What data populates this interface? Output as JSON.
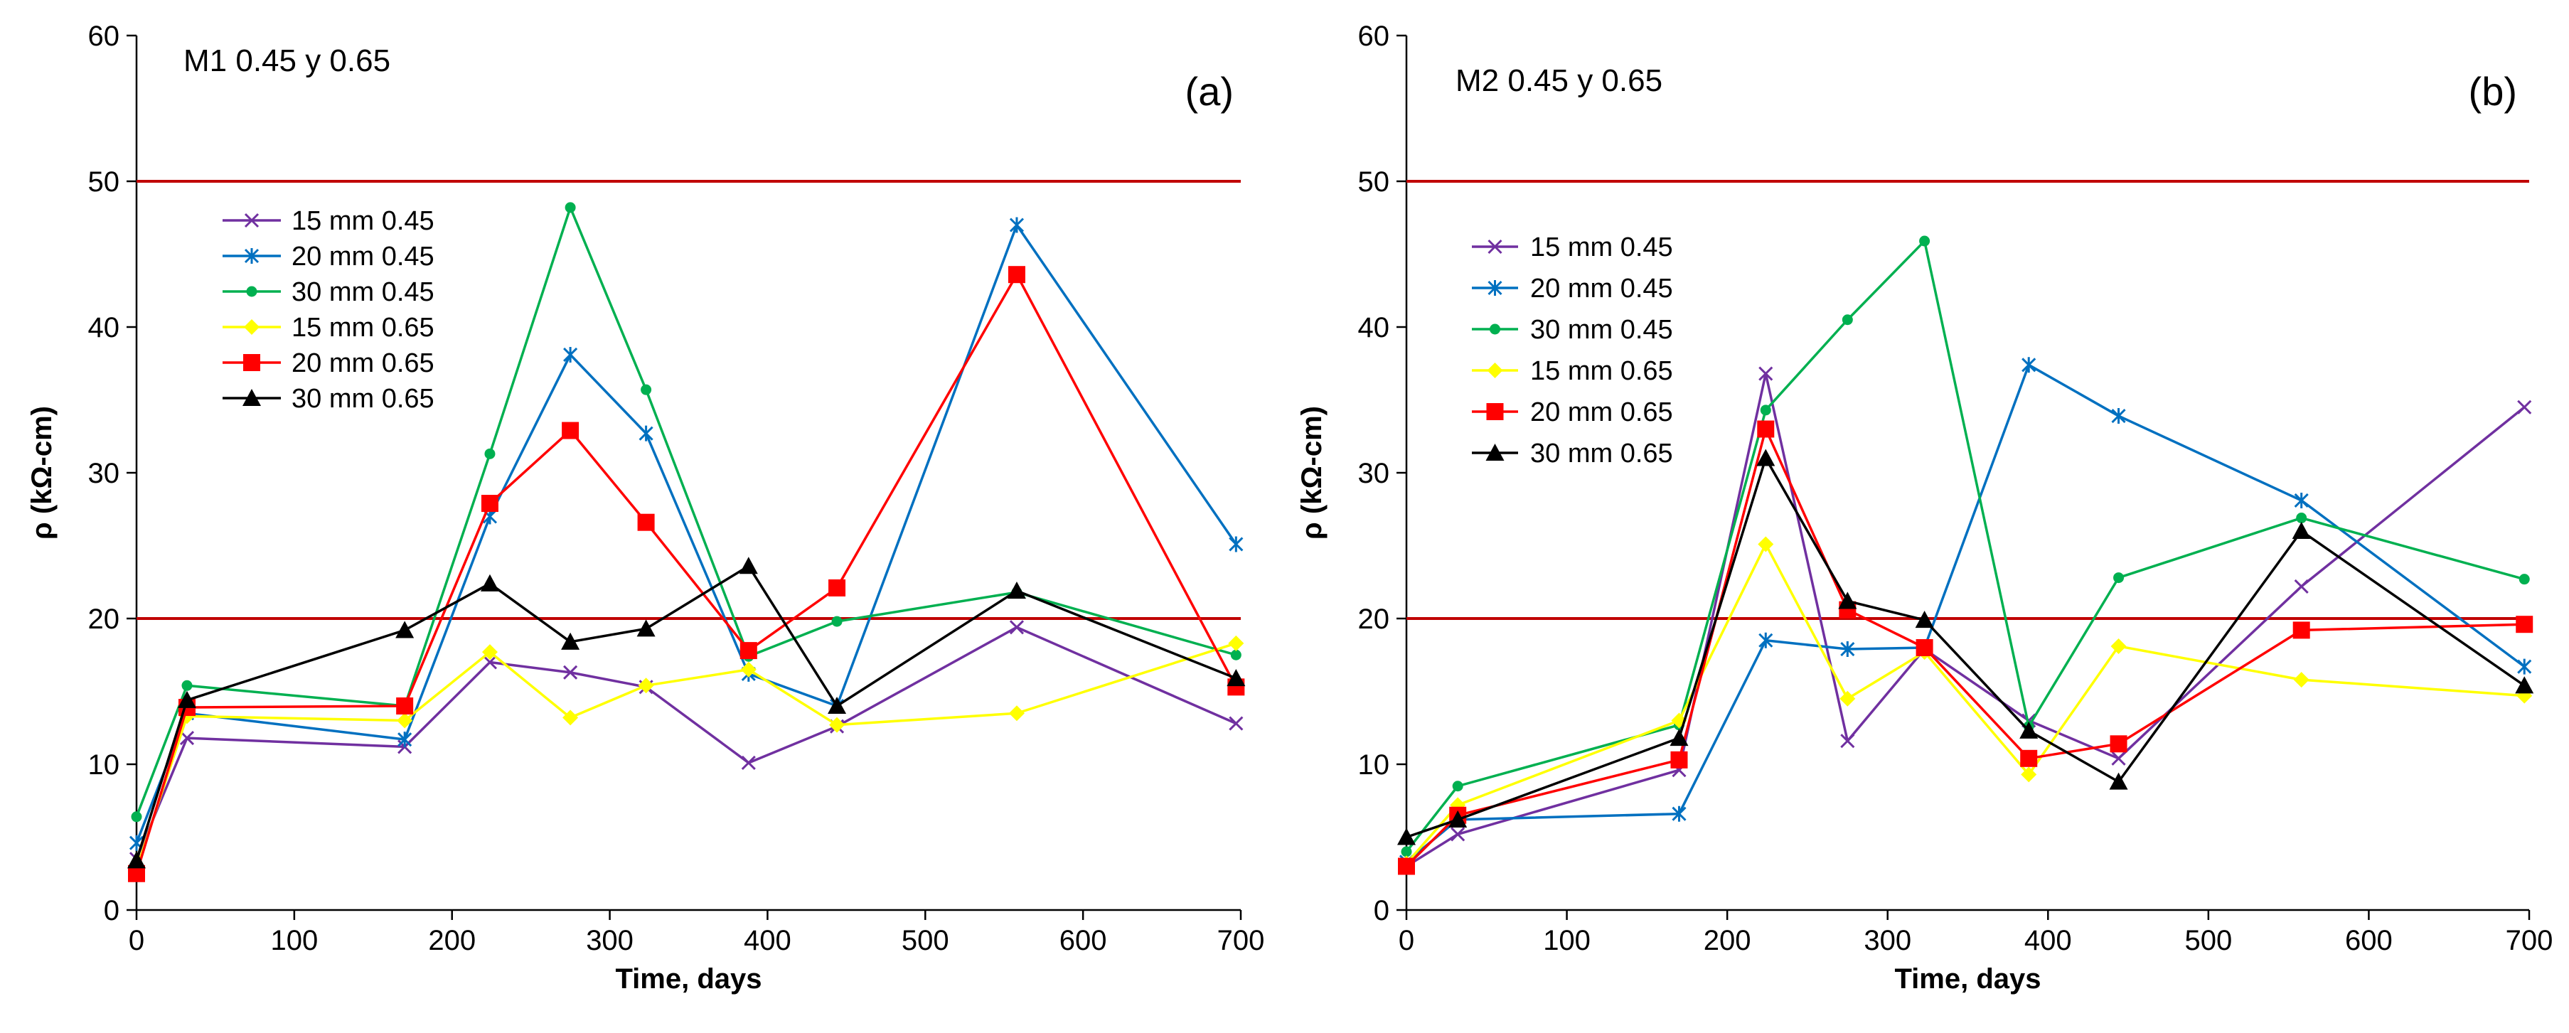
{
  "chart_data": [
    {
      "type": "line",
      "panel_label": "(a)",
      "title": "M1 0.45 y 0.65",
      "xlabel": "Time, days",
      "ylabel": "ρ (kΩ-cm)",
      "xlim": [
        0,
        700
      ],
      "ylim": [
        0,
        60
      ],
      "xticks": [
        0,
        100,
        200,
        300,
        400,
        500,
        600,
        700
      ],
      "yticks": [
        0,
        10,
        20,
        30,
        40,
        50,
        60
      ],
      "legend_position": "upper-left",
      "reference_lines": [
        20,
        50
      ],
      "reference_line_color": "#C00000",
      "series": [
        {
          "name": "15 mm 0.45",
          "color": "#7030A0",
          "marker": "x",
          "x": [
            0,
            32,
            170,
            224,
            275,
            323,
            388,
            444,
            558,
            697
          ],
          "y": [
            3.5,
            11.8,
            11.2,
            17.0,
            16.3,
            15.3,
            10.1,
            12.6,
            19.4,
            12.8
          ]
        },
        {
          "name": "20 mm 0.45",
          "color": "#0070C0",
          "marker": "star",
          "x": [
            0,
            32,
            170,
            224,
            275,
            323,
            388,
            444,
            558,
            697
          ],
          "y": [
            4.6,
            13.5,
            11.7,
            27.0,
            38.1,
            32.7,
            16.2,
            14.0,
            47.0,
            25.1
          ]
        },
        {
          "name": "30 mm 0.45",
          "color": "#00B050",
          "marker": "dot",
          "x": [
            0,
            32,
            170,
            224,
            275,
            323,
            388,
            444,
            558,
            697
          ],
          "y": [
            6.4,
            15.4,
            14.0,
            31.3,
            48.2,
            35.7,
            17.4,
            19.8,
            21.8,
            17.5
          ]
        },
        {
          "name": "15 mm 0.65",
          "color": "#FFFF00",
          "marker": "diamond",
          "x": [
            0,
            32,
            170,
            224,
            275,
            323,
            388,
            444,
            558,
            697
          ],
          "y": [
            2.8,
            13.3,
            13.0,
            17.7,
            13.2,
            15.4,
            16.5,
            12.7,
            13.5,
            18.3
          ]
        },
        {
          "name": "20 mm 0.65",
          "color": "#FF0000",
          "marker": "square",
          "x": [
            0,
            32,
            170,
            224,
            275,
            323,
            388,
            444,
            558,
            697
          ],
          "y": [
            2.5,
            13.9,
            14.0,
            27.9,
            32.9,
            26.6,
            17.8,
            22.1,
            43.6,
            15.3
          ]
        },
        {
          "name": "30 mm 0.65",
          "color": "#000000",
          "marker": "triangle",
          "x": [
            0,
            32,
            170,
            224,
            275,
            323,
            388,
            444,
            558,
            697
          ],
          "y": [
            3.4,
            14.4,
            19.2,
            22.4,
            18.4,
            19.3,
            23.6,
            14.0,
            21.9,
            15.9
          ]
        }
      ]
    },
    {
      "type": "line",
      "panel_label": "(b)",
      "title": "M2 0.45 y 0.65",
      "xlabel": "Time, days",
      "ylabel": "ρ (kΩ-cm)",
      "xlim": [
        0,
        700
      ],
      "ylim": [
        0,
        60
      ],
      "xticks": [
        0,
        100,
        200,
        300,
        400,
        500,
        600,
        700
      ],
      "yticks": [
        0,
        10,
        20,
        30,
        40,
        50,
        60
      ],
      "legend_position": "upper-left",
      "reference_lines": [
        20,
        50
      ],
      "reference_line_color": "#C00000",
      "series": [
        {
          "name": "15 mm 0.45",
          "color": "#7030A0",
          "marker": "x",
          "x": [
            0,
            32,
            170,
            224,
            275,
            323,
            388,
            444,
            558,
            697
          ],
          "y": [
            3.0,
            5.2,
            9.6,
            36.8,
            11.6,
            17.9,
            13.0,
            10.4,
            22.2,
            34.5
          ]
        },
        {
          "name": "20 mm 0.45",
          "color": "#0070C0",
          "marker": "star",
          "x": [
            0,
            32,
            170,
            224,
            275,
            323,
            388,
            444,
            558,
            697
          ],
          "y": [
            3.3,
            6.2,
            6.6,
            18.5,
            17.9,
            18.0,
            37.4,
            33.9,
            28.1,
            16.7
          ]
        },
        {
          "name": "30 mm 0.45",
          "color": "#00B050",
          "marker": "dot",
          "x": [
            0,
            32,
            170,
            224,
            275,
            323,
            388,
            444,
            558,
            697
          ],
          "y": [
            4.0,
            8.5,
            12.7,
            34.3,
            40.5,
            45.9,
            12.6,
            22.8,
            26.9,
            22.7
          ]
        },
        {
          "name": "15 mm 0.65",
          "color": "#FFFF00",
          "marker": "diamond",
          "x": [
            0,
            32,
            170,
            224,
            275,
            323,
            388,
            444,
            558,
            697
          ],
          "y": [
            3.2,
            7.2,
            13.0,
            25.1,
            14.5,
            17.7,
            9.3,
            18.1,
            15.8,
            14.7
          ]
        },
        {
          "name": "20 mm 0.65",
          "color": "#FF0000",
          "marker": "square",
          "x": [
            0,
            32,
            170,
            224,
            275,
            323,
            388,
            444,
            558,
            697
          ],
          "y": [
            3.0,
            6.5,
            10.3,
            33.0,
            20.6,
            18.0,
            10.4,
            11.4,
            19.2,
            19.6
          ]
        },
        {
          "name": "30 mm 0.65",
          "color": "#000000",
          "marker": "triangle",
          "x": [
            0,
            32,
            170,
            224,
            275,
            323,
            388,
            444,
            558,
            697
          ],
          "y": [
            5.0,
            6.2,
            11.8,
            31.0,
            21.2,
            19.9,
            12.3,
            8.8,
            26.0,
            15.4
          ]
        }
      ]
    }
  ]
}
